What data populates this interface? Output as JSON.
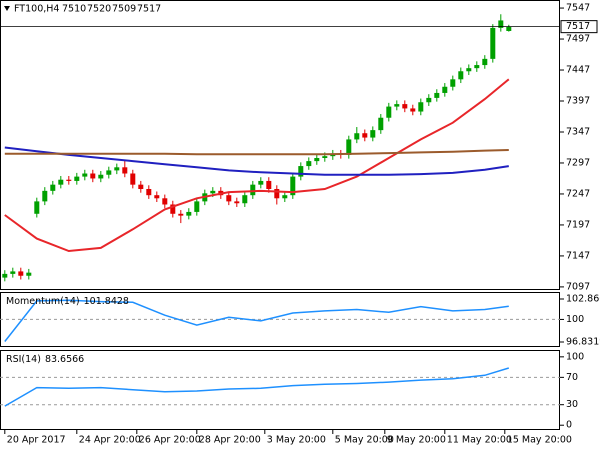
{
  "chart_data": [
    {
      "type": "candlestick",
      "symbol": "FT100,H4",
      "x": [
        0,
        1,
        2,
        3,
        4,
        5,
        6,
        7,
        8,
        9,
        10,
        11,
        12,
        13,
        14,
        15,
        16,
        17,
        18,
        19,
        20,
        21,
        22,
        23,
        24,
        25,
        26,
        27,
        28,
        29,
        30,
        31,
        32,
        33,
        34,
        35,
        36,
        37,
        38,
        39,
        40,
        41,
        42,
        43,
        44,
        45,
        46,
        47,
        48,
        49,
        50,
        51,
        52,
        53,
        54,
        55,
        56,
        57,
        58,
        59,
        60,
        61,
        62,
        63
      ],
      "open": [
        7112,
        7118,
        7122,
        7115,
        7215,
        7235,
        7252,
        7262,
        7270,
        7268,
        7275,
        7280,
        7272,
        7278,
        7285,
        7290,
        7280,
        7262,
        7255,
        7245,
        7240,
        7230,
        7215,
        7212,
        7218,
        7235,
        7248,
        7252,
        7245,
        7235,
        7232,
        7245,
        7262,
        7268,
        7255,
        7240,
        7245,
        7275,
        7292,
        7300,
        7305,
        7308,
        7312,
        7310,
        7335,
        7345,
        7338,
        7350,
        7370,
        7388,
        7392,
        7385,
        7380,
        7395,
        7402,
        7410,
        7420,
        7432,
        7445,
        7450,
        7455,
        7465,
        7515,
        7510
      ],
      "high": [
        7124,
        7128,
        7128,
        7126,
        7241,
        7258,
        7268,
        7276,
        7276,
        7281,
        7286,
        7286,
        7284,
        7291,
        7296,
        7302,
        7286,
        7268,
        7261,
        7251,
        7246,
        7236,
        7221,
        7224,
        7241,
        7254,
        7258,
        7258,
        7251,
        7241,
        7251,
        7268,
        7274,
        7274,
        7261,
        7251,
        7281,
        7298,
        7306,
        7311,
        7314,
        7318,
        7318,
        7341,
        7355,
        7351,
        7356,
        7376,
        7394,
        7398,
        7398,
        7391,
        7401,
        7408,
        7416,
        7426,
        7438,
        7451,
        7456,
        7461,
        7471,
        7521,
        7537,
        7520
      ],
      "low": [
        7106,
        7112,
        7109,
        7109,
        7209,
        7229,
        7246,
        7256,
        7262,
        7262,
        7269,
        7266,
        7266,
        7272,
        7279,
        7274,
        7256,
        7249,
        7239,
        7234,
        7224,
        7209,
        7200,
        7206,
        7212,
        7229,
        7242,
        7239,
        7229,
        7226,
        7226,
        7239,
        7256,
        7249,
        7230,
        7234,
        7239,
        7269,
        7286,
        7294,
        7299,
        7302,
        7304,
        7304,
        7329,
        7332,
        7332,
        7344,
        7364,
        7382,
        7379,
        7374,
        7374,
        7389,
        7396,
        7404,
        7414,
        7426,
        7439,
        7444,
        7449,
        7459,
        7509,
        7509
      ],
      "close": [
        7118,
        7122,
        7115,
        7120,
        7235,
        7252,
        7262,
        7270,
        7268,
        7275,
        7280,
        7272,
        7278,
        7285,
        7290,
        7280,
        7262,
        7255,
        7245,
        7240,
        7230,
        7215,
        7212,
        7218,
        7235,
        7248,
        7252,
        7245,
        7235,
        7232,
        7245,
        7262,
        7268,
        7255,
        7240,
        7245,
        7275,
        7292,
        7300,
        7305,
        7308,
        7312,
        7310,
        7335,
        7345,
        7338,
        7350,
        7370,
        7388,
        7392,
        7385,
        7380,
        7395,
        7402,
        7410,
        7420,
        7432,
        7445,
        7450,
        7455,
        7465,
        7515,
        7527,
        7517
      ],
      "up_color": "#00a000",
      "down_color": "#e00000",
      "xlim": [
        -0.6,
        69.4
      ],
      "ylim": [
        7092,
        7560
      ],
      "yticks": [
        7547,
        7497,
        7447,
        7397,
        7347,
        7297,
        7247,
        7197,
        7147,
        7097
      ],
      "xticks": [
        {
          "value": 0,
          "label": "20 Apr 2017"
        },
        {
          "value": 9,
          "label": "24 Apr 20:00"
        },
        {
          "value": 16.5,
          "label": "26 Apr 20:00"
        },
        {
          "value": 24,
          "label": "28 Apr 20:00"
        },
        {
          "value": 32.5,
          "label": "3 May 20:00"
        },
        {
          "value": 41,
          "label": "5 May 20:00"
        },
        {
          "value": 47.5,
          "label": "9 May 20:00"
        },
        {
          "value": 55,
          "label": "11 May 20:00"
        },
        {
          "value": 62.5,
          "label": "15 May 20:00"
        }
      ],
      "series": [
        {
          "color": "#e8262a",
          "x": [
            0,
            4,
            8,
            12,
            16,
            20,
            24,
            28,
            32,
            36,
            40,
            44,
            48,
            52,
            56,
            60,
            63
          ],
          "values": [
            7213,
            7175,
            7155,
            7160,
            7190,
            7222,
            7240,
            7250,
            7252,
            7250,
            7255,
            7275,
            7305,
            7335,
            7362,
            7400,
            7432
          ]
        },
        {
          "color": "#2020c0",
          "x": [
            0,
            4,
            8,
            12,
            16,
            20,
            24,
            28,
            32,
            36,
            40,
            44,
            48,
            52,
            56,
            60,
            63
          ],
          "values": [
            7322,
            7316,
            7310,
            7305,
            7300,
            7295,
            7290,
            7285,
            7282,
            7280,
            7278,
            7278,
            7278,
            7279,
            7281,
            7286,
            7292
          ]
        },
        {
          "color": "#9b5b2c",
          "x": [
            0,
            4,
            8,
            12,
            16,
            20,
            24,
            28,
            32,
            36,
            40,
            44,
            48,
            52,
            56,
            60,
            63
          ],
          "values": [
            7312,
            7312,
            7312,
            7312,
            7312,
            7312,
            7311,
            7311,
            7311,
            7311,
            7311,
            7312,
            7313,
            7314,
            7315,
            7317,
            7318
          ]
        }
      ]
    },
    {
      "type": "line",
      "xlim": [
        -0.6,
        69.4
      ],
      "ylim": [
        96.13,
        103.85
      ],
      "yticks": [
        102.8666,
        100,
        96.8319
      ],
      "levels": [
        100
      ],
      "series": [
        {
          "name": "Momentum(14)",
          "color": "#1e90ff",
          "x": [
            0,
            4,
            8,
            12,
            16,
            20,
            24,
            28,
            32,
            36,
            40,
            44,
            48,
            52,
            56,
            60,
            63
          ],
          "values": [
            96.9,
            102.6,
            102.7,
            102.5,
            102.4,
            100.6,
            99.2,
            100.3,
            99.8,
            100.9,
            101.2,
            101.4,
            101.0,
            101.8,
            101.2,
            101.4,
            101.8428
          ]
        }
      ]
    },
    {
      "type": "line",
      "xlim": [
        -0.6,
        69.4
      ],
      "ylim": [
        -7,
        110
      ],
      "yticks": [
        100,
        70,
        30,
        0
      ],
      "levels": [
        70,
        30
      ],
      "series": [
        {
          "name": "RSI(14)",
          "color": "#1e90ff",
          "x": [
            0,
            4,
            8,
            12,
            16,
            20,
            24,
            28,
            32,
            36,
            40,
            44,
            48,
            52,
            56,
            60,
            63
          ],
          "values": [
            28,
            55,
            54,
            55,
            52,
            49,
            50,
            53,
            54,
            58,
            60,
            61,
            63,
            66,
            68,
            73,
            83.6566
          ]
        }
      ]
    }
  ]
}
